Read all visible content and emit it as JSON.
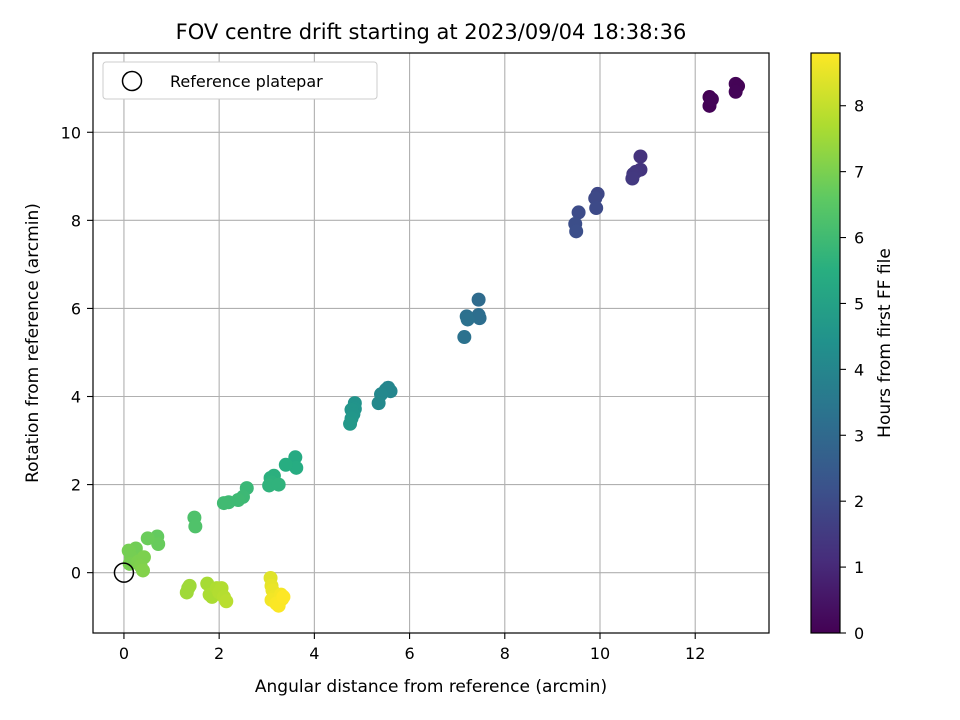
{
  "chart_data": {
    "type": "scatter",
    "title": "FOV centre drift starting at 2023/09/04 18:38:36",
    "xlabel": "Angular distance from reference (arcmin)",
    "ylabel": "Rotation from reference (arcmin)",
    "xlim": [
      -0.65,
      13.55
    ],
    "ylim": [
      -1.37,
      11.8
    ],
    "xticks": [
      0,
      2,
      4,
      6,
      8,
      10,
      12
    ],
    "yticks": [
      0,
      2,
      4,
      6,
      8,
      10
    ],
    "grid": true,
    "legend": {
      "placement": "top-left",
      "entries": [
        "Reference platepar"
      ]
    },
    "reference_point": {
      "x": 0,
      "y": 0
    },
    "colorbar": {
      "label": "Hours from first FF file",
      "colormap": "viridis",
      "range": [
        0,
        8.8
      ],
      "ticks": [
        0,
        1,
        2,
        3,
        4,
        5,
        6,
        7,
        8
      ]
    },
    "points": [
      {
        "x": 12.3,
        "y": 10.8,
        "h": 0.0
      },
      {
        "x": 12.3,
        "y": 10.6,
        "h": 0.05
      },
      {
        "x": 12.35,
        "y": 10.75,
        "h": 0.1
      },
      {
        "x": 12.85,
        "y": 11.1,
        "h": 0.1
      },
      {
        "x": 12.9,
        "y": 11.05,
        "h": 0.05
      },
      {
        "x": 12.85,
        "y": 10.92,
        "h": 0.08
      },
      {
        "x": 10.85,
        "y": 9.45,
        "h": 1.3
      },
      {
        "x": 10.85,
        "y": 9.15,
        "h": 1.35
      },
      {
        "x": 10.75,
        "y": 9.1,
        "h": 1.4
      },
      {
        "x": 10.7,
        "y": 9.05,
        "h": 1.45
      },
      {
        "x": 10.68,
        "y": 8.95,
        "h": 1.5
      },
      {
        "x": 9.95,
        "y": 8.6,
        "h": 1.9
      },
      {
        "x": 9.9,
        "y": 8.5,
        "h": 1.95
      },
      {
        "x": 9.92,
        "y": 8.28,
        "h": 2.0
      },
      {
        "x": 9.55,
        "y": 8.18,
        "h": 2.05
      },
      {
        "x": 9.48,
        "y": 7.92,
        "h": 2.1
      },
      {
        "x": 9.5,
        "y": 7.75,
        "h": 2.15
      },
      {
        "x": 7.45,
        "y": 6.2,
        "h": 3.1
      },
      {
        "x": 7.45,
        "y": 5.85,
        "h": 3.15
      },
      {
        "x": 7.47,
        "y": 5.78,
        "h": 3.2
      },
      {
        "x": 7.2,
        "y": 5.82,
        "h": 3.25
      },
      {
        "x": 7.22,
        "y": 5.75,
        "h": 3.3
      },
      {
        "x": 7.15,
        "y": 5.35,
        "h": 3.35
      },
      {
        "x": 5.55,
        "y": 4.2,
        "h": 4.0
      },
      {
        "x": 5.6,
        "y": 4.12,
        "h": 4.05
      },
      {
        "x": 5.5,
        "y": 4.15,
        "h": 4.05
      },
      {
        "x": 5.4,
        "y": 4.05,
        "h": 4.1
      },
      {
        "x": 5.35,
        "y": 3.85,
        "h": 4.15
      },
      {
        "x": 4.85,
        "y": 3.85,
        "h": 4.5
      },
      {
        "x": 4.85,
        "y": 3.72,
        "h": 4.55
      },
      {
        "x": 4.78,
        "y": 3.7,
        "h": 4.6
      },
      {
        "x": 4.82,
        "y": 3.6,
        "h": 4.6
      },
      {
        "x": 4.78,
        "y": 3.5,
        "h": 4.65
      },
      {
        "x": 4.75,
        "y": 3.38,
        "h": 4.7
      },
      {
        "x": 3.6,
        "y": 2.62,
        "h": 5.4
      },
      {
        "x": 3.62,
        "y": 2.38,
        "h": 5.45
      },
      {
        "x": 3.4,
        "y": 2.45,
        "h": 5.5
      },
      {
        "x": 3.15,
        "y": 2.2,
        "h": 5.6
      },
      {
        "x": 3.08,
        "y": 2.15,
        "h": 5.6
      },
      {
        "x": 3.1,
        "y": 2.05,
        "h": 5.65
      },
      {
        "x": 3.05,
        "y": 1.98,
        "h": 5.7
      },
      {
        "x": 3.25,
        "y": 2.0,
        "h": 5.7
      },
      {
        "x": 2.58,
        "y": 1.92,
        "h": 5.9
      },
      {
        "x": 2.5,
        "y": 1.72,
        "h": 5.95
      },
      {
        "x": 2.4,
        "y": 1.65,
        "h": 6.0
      },
      {
        "x": 2.2,
        "y": 1.6,
        "h": 6.0
      },
      {
        "x": 2.1,
        "y": 1.58,
        "h": 6.05
      },
      {
        "x": 1.48,
        "y": 1.25,
        "h": 6.3
      },
      {
        "x": 1.5,
        "y": 1.05,
        "h": 6.35
      },
      {
        "x": 0.7,
        "y": 0.82,
        "h": 6.7
      },
      {
        "x": 0.72,
        "y": 0.65,
        "h": 6.75
      },
      {
        "x": 0.5,
        "y": 0.78,
        "h": 6.8
      },
      {
        "x": 0.25,
        "y": 0.55,
        "h": 6.9
      },
      {
        "x": 0.1,
        "y": 0.5,
        "h": 6.95
      },
      {
        "x": 0.15,
        "y": 0.35,
        "h": 6.95
      },
      {
        "x": 0.12,
        "y": 0.2,
        "h": 7.0
      },
      {
        "x": 0.3,
        "y": 0.25,
        "h": 7.05
      },
      {
        "x": 0.42,
        "y": 0.35,
        "h": 7.05
      },
      {
        "x": 0.35,
        "y": 0.15,
        "h": 7.1
      },
      {
        "x": 0.4,
        "y": 0.05,
        "h": 7.15
      },
      {
        "x": 1.35,
        "y": -0.35,
        "h": 7.5
      },
      {
        "x": 1.32,
        "y": -0.45,
        "h": 7.55
      },
      {
        "x": 1.38,
        "y": -0.3,
        "h": 7.55
      },
      {
        "x": 1.75,
        "y": -0.25,
        "h": 7.65
      },
      {
        "x": 1.8,
        "y": -0.5,
        "h": 7.7
      },
      {
        "x": 1.85,
        "y": -0.55,
        "h": 7.7
      },
      {
        "x": 1.95,
        "y": -0.35,
        "h": 7.75
      },
      {
        "x": 2.0,
        "y": -0.45,
        "h": 7.8
      },
      {
        "x": 2.05,
        "y": -0.35,
        "h": 7.8
      },
      {
        "x": 2.1,
        "y": -0.55,
        "h": 7.85
      },
      {
        "x": 2.15,
        "y": -0.65,
        "h": 7.9
      },
      {
        "x": 3.08,
        "y": -0.12,
        "h": 8.4
      },
      {
        "x": 3.1,
        "y": -0.3,
        "h": 8.5
      },
      {
        "x": 3.12,
        "y": -0.4,
        "h": 8.55
      },
      {
        "x": 3.15,
        "y": -0.55,
        "h": 8.6
      },
      {
        "x": 3.18,
        "y": -0.65,
        "h": 8.65
      },
      {
        "x": 3.1,
        "y": -0.62,
        "h": 8.65
      },
      {
        "x": 3.3,
        "y": -0.5,
        "h": 8.7
      },
      {
        "x": 3.32,
        "y": -0.6,
        "h": 8.72
      },
      {
        "x": 3.2,
        "y": -0.7,
        "h": 8.75
      },
      {
        "x": 3.25,
        "y": -0.75,
        "h": 8.78
      },
      {
        "x": 3.35,
        "y": -0.55,
        "h": 8.8
      }
    ]
  }
}
